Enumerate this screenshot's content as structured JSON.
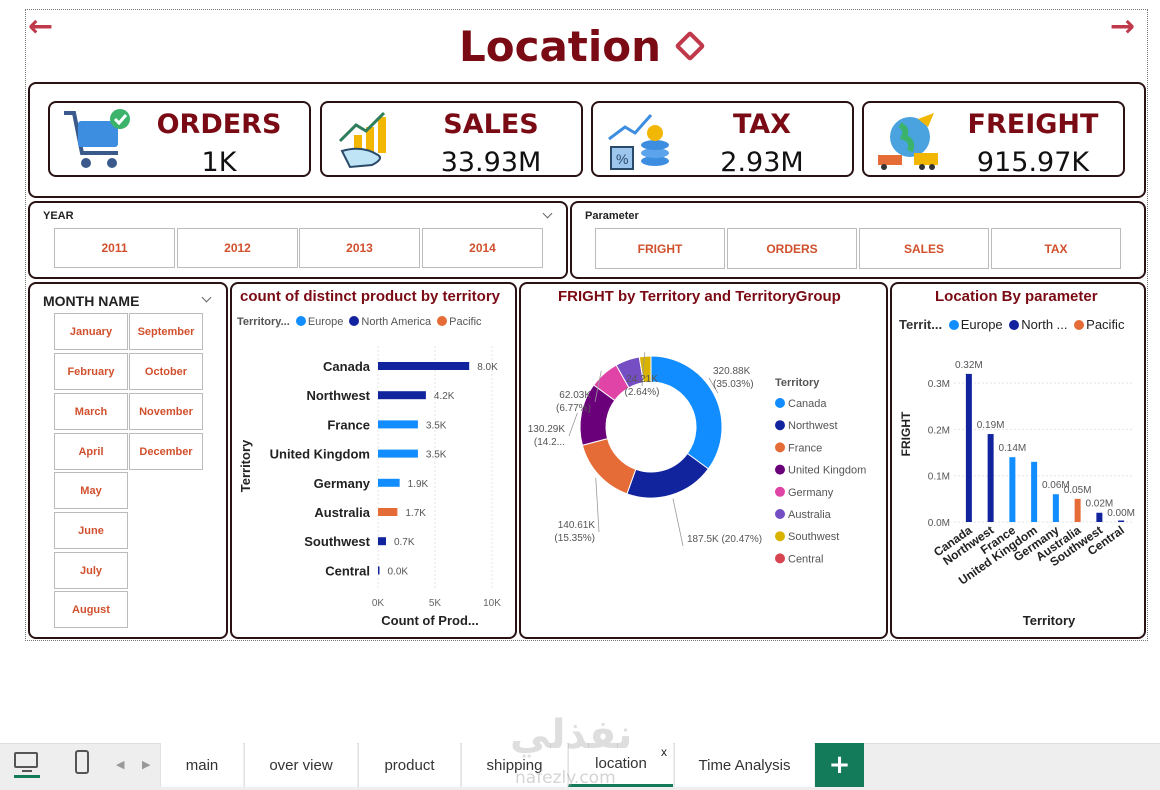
{
  "page": {
    "title": "Location"
  },
  "kpis": [
    {
      "name": "ORDERS",
      "value": "1K"
    },
    {
      "name": "SALES",
      "value": "33.93M"
    },
    {
      "name": "TAX",
      "value": "2.93M"
    },
    {
      "name": "FREIGHT",
      "value": "915.97K"
    }
  ],
  "year_slicer": {
    "label": "YEAR",
    "options": [
      "2011",
      "2012",
      "2013",
      "2014"
    ]
  },
  "parameter_slicer": {
    "label": "Parameter",
    "options": [
      "FRIGHT",
      "ORDERS",
      "SALES",
      "TAX"
    ]
  },
  "month_slicer": {
    "label": "MONTH NAME",
    "left": [
      "January",
      "February",
      "March",
      "April",
      "May",
      "June",
      "July",
      "August"
    ],
    "right": [
      "September",
      "October",
      "November",
      "December"
    ]
  },
  "colors": {
    "europe": "#118dff",
    "north_america": "#12239e",
    "pacific": "#e66c37",
    "title": "#7a0b14",
    "border": "#2a1214",
    "accent": "#d1502d",
    "tab_green": "#137a5a"
  },
  "chart_data": [
    {
      "type": "bar",
      "orientation": "horizontal",
      "title": "count of distinct product by territory",
      "legend_title": "Territory...",
      "legend": [
        "Europe",
        "North America",
        "Pacific"
      ],
      "categories": [
        "Canada",
        "Northwest",
        "France",
        "United Kingdom",
        "Germany",
        "Australia",
        "Southwest",
        "Central"
      ],
      "values": [
        8000,
        4200,
        3500,
        3500,
        1900,
        1700,
        700,
        0
      ],
      "labels": [
        "8.0K",
        "4.2K",
        "3.5K",
        "3.5K",
        "1.9K",
        "1.7K",
        "0.7K",
        "0.0K"
      ],
      "groups": [
        "North America",
        "North America",
        "Europe",
        "Europe",
        "Europe",
        "Pacific",
        "North America",
        "North America"
      ],
      "xticks": [
        "0K",
        "5K",
        "10K"
      ],
      "xlim": [
        0,
        10000
      ],
      "xlabel": "Count of Prod...",
      "ylabel": "Territory"
    },
    {
      "type": "pie",
      "donut": true,
      "title": "FRIGHT by Territory and TerritoryGroup",
      "legend_title": "Territory",
      "slices": [
        {
          "name": "Canada",
          "value": 320.88,
          "label": "320.88K",
          "pct": "(35.03%)",
          "color": "#118dff"
        },
        {
          "name": "Northwest",
          "value": 187.5,
          "label": "187.5K (20.47%)",
          "pct": "",
          "color": "#12239e"
        },
        {
          "name": "France",
          "value": 140.61,
          "label": "140.61K",
          "pct": "(15.35%)",
          "color": "#e66c37"
        },
        {
          "name": "United Kingdom",
          "value": 130.29,
          "label": "130.29K",
          "pct": "(14.2...",
          "color": "#6b007b"
        },
        {
          "name": "Germany",
          "value": 62.03,
          "label": "62.03K",
          "pct": "(6.77%)",
          "color": "#e044a7"
        },
        {
          "name": "Australia",
          "value": 50.44,
          "label": "",
          "pct": "",
          "color": "#744ec2"
        },
        {
          "name": "Southwest",
          "value": 24.21,
          "label": "24.21K",
          "pct": "(2.64%)",
          "color": "#d9b300"
        },
        {
          "name": "Central",
          "value": 0,
          "label": "",
          "pct": "",
          "color": "#d64550"
        }
      ]
    },
    {
      "type": "bar",
      "orientation": "vertical",
      "title": "Location By parameter",
      "legend_title": "Territ...",
      "legend": [
        "Europe",
        "North ...",
        "Pacific"
      ],
      "categories": [
        "Canada",
        "Northwest",
        "France",
        "United Kingdom",
        "Germany",
        "Australia",
        "Southwest",
        "Central"
      ],
      "values": [
        0.32,
        0.19,
        0.14,
        0.13,
        0.06,
        0.05,
        0.02,
        0.0
      ],
      "labels": [
        "0.32M",
        "0.19M",
        "0.14M",
        "",
        "0.06M",
        "0.05M",
        "0.02M",
        "0.00M"
      ],
      "groups": [
        "North America",
        "North America",
        "Europe",
        "Europe",
        "Europe",
        "Pacific",
        "North America",
        "North America"
      ],
      "yticks": [
        "0.0M",
        "0.1M",
        "0.2M",
        "0.3M"
      ],
      "ylim": [
        0,
        0.35
      ],
      "xlabel": "Territory",
      "ylabel": "FRIGHT"
    }
  ],
  "tabs": [
    {
      "label": "main"
    },
    {
      "label": "over view"
    },
    {
      "label": "product"
    },
    {
      "label": "shipping"
    },
    {
      "label": "location"
    },
    {
      "label": "Time Analysis"
    }
  ],
  "tab_close": "x",
  "tab_add": "+",
  "watermark": {
    "arabic": "نفذلي",
    "latin": "nafezly.com"
  }
}
